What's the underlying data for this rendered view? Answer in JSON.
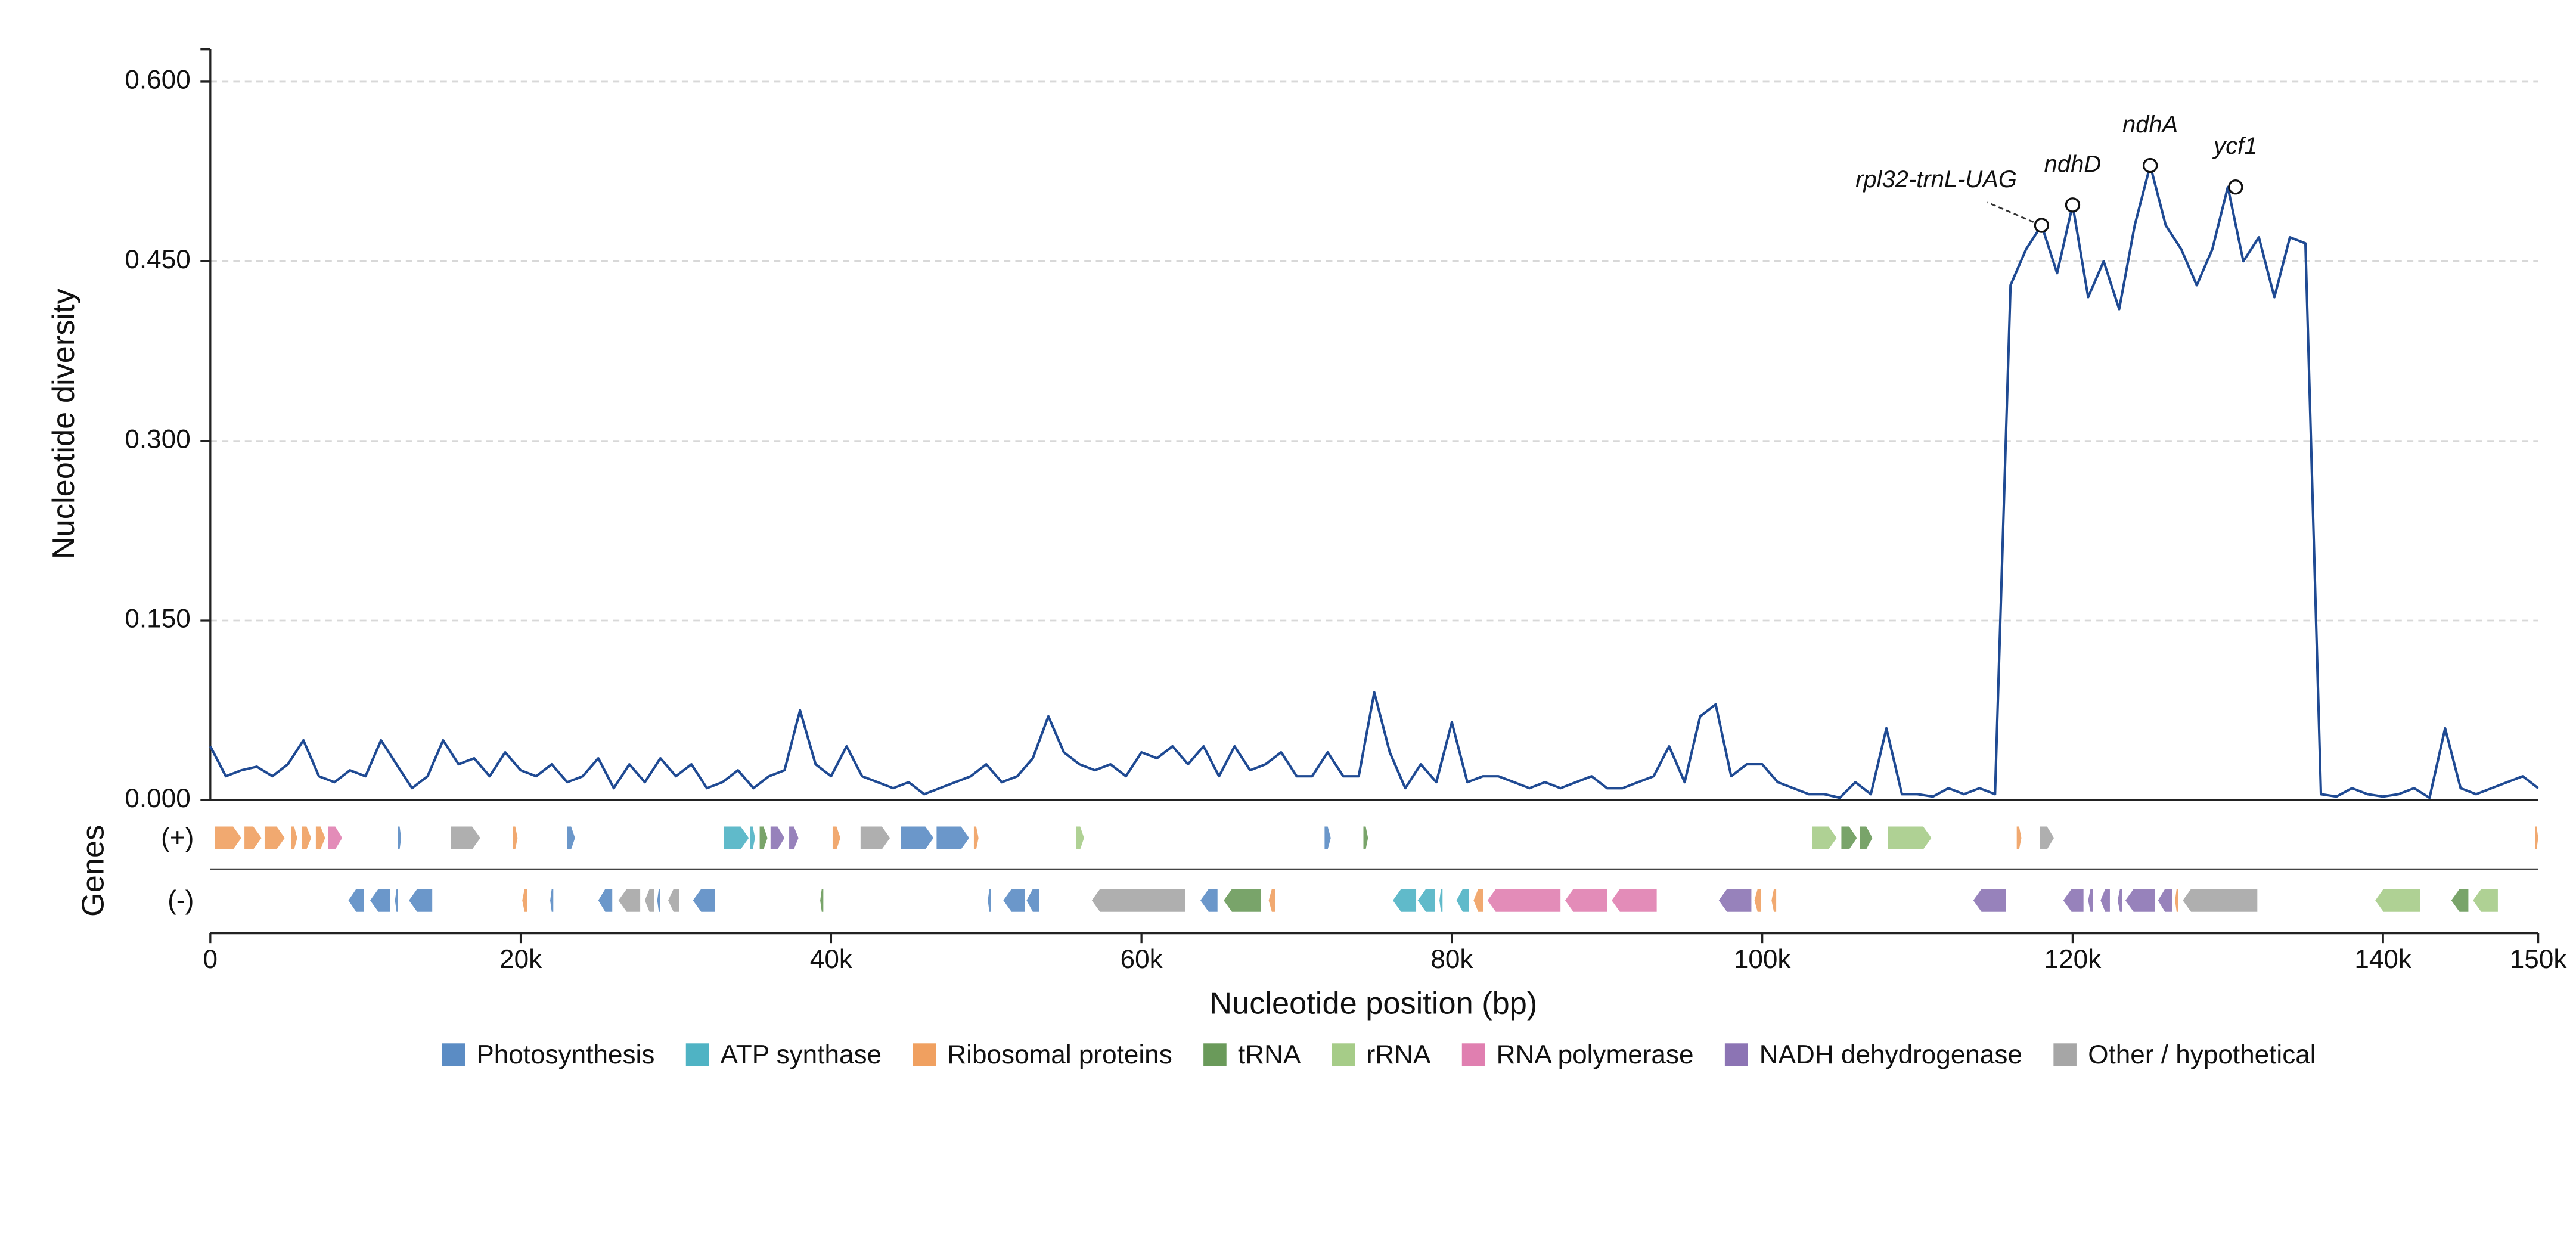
{
  "chart_data": {
    "type": "line",
    "xlabel": "Nucleotide position (bp)",
    "ylabel": "Nucleotide diversity",
    "track_label": "Genes",
    "plus_label": "(+)",
    "minus_label": "(-)",
    "xlim": [
      0,
      150000
    ],
    "ylim": [
      0,
      0.627
    ],
    "xticks": [
      0,
      {
        "value": 20000,
        "label": "20k"
      },
      {
        "value": 40000,
        "label": "40k"
      },
      {
        "value": 60000,
        "label": "60k"
      },
      {
        "value": 80000,
        "label": "80k"
      },
      {
        "value": 100000,
        "label": "100k"
      },
      {
        "value": 120000,
        "label": "120k"
      },
      {
        "value": 140000,
        "label": "140k"
      },
      {
        "value": 150000,
        "label": "150k"
      }
    ],
    "yticks": [
      {
        "value": 0,
        "label": "0.000"
      },
      {
        "value": 0.15,
        "label": "0.150"
      },
      {
        "value": 0.3,
        "label": "0.300"
      },
      {
        "value": 0.45,
        "label": "0.450"
      },
      {
        "value": 0.6,
        "label": "0.600"
      }
    ],
    "grid": true,
    "series": [
      {
        "color": "#1f4a93",
        "x": [
          0,
          1000,
          2000,
          3000,
          4000,
          5000,
          6000,
          7000,
          8000,
          9000,
          10000,
          11000,
          12000,
          13000,
          14000,
          15000,
          16000,
          17000,
          18000,
          19000,
          20000,
          21000,
          22000,
          23000,
          24000,
          25000,
          26000,
          27000,
          28000,
          29000,
          30000,
          31000,
          32000,
          33000,
          34000,
          35000,
          36000,
          37000,
          38000,
          39000,
          40000,
          41000,
          42000,
          43000,
          44000,
          45000,
          46000,
          47000,
          48000,
          49000,
          50000,
          51000,
          52000,
          53000,
          54000,
          55000,
          56000,
          57000,
          58000,
          59000,
          60000,
          61000,
          62000,
          63000,
          64000,
          65000,
          66000,
          67000,
          68000,
          69000,
          70000,
          71000,
          72000,
          73000,
          74000,
          75000,
          76000,
          77000,
          78000,
          79000,
          80000,
          81000,
          82000,
          83000,
          84000,
          85000,
          86000,
          87000,
          88000,
          89000,
          90000,
          91000,
          92000,
          93000,
          94000,
          95000,
          96000,
          97000,
          98000,
          99000,
          100000,
          101000,
          102000,
          103000,
          104000,
          105000,
          106000,
          107000,
          108000,
          109000,
          110000,
          111000,
          112000,
          113000,
          114000,
          115000,
          116000,
          117000,
          118000,
          119000,
          120000,
          121000,
          122000,
          123000,
          124000,
          125000,
          126000,
          127000,
          128000,
          129000,
          130000,
          131000,
          132000,
          133000,
          134000,
          135000,
          136000,
          137000,
          138000,
          139000,
          140000,
          141000,
          142000,
          143000,
          144000,
          145000,
          146000,
          147000,
          148000,
          149000,
          150000
        ],
        "values": [
          0.045,
          0.02,
          0.025,
          0.028,
          0.02,
          0.03,
          0.05,
          0.02,
          0.015,
          0.025,
          0.02,
          0.05,
          0.03,
          0.01,
          0.02,
          0.05,
          0.03,
          0.035,
          0.02,
          0.04,
          0.025,
          0.02,
          0.03,
          0.015,
          0.02,
          0.035,
          0.01,
          0.03,
          0.015,
          0.035,
          0.02,
          0.03,
          0.01,
          0.015,
          0.025,
          0.01,
          0.02,
          0.025,
          0.075,
          0.03,
          0.02,
          0.045,
          0.02,
          0.015,
          0.01,
          0.015,
          0.005,
          0.01,
          0.015,
          0.02,
          0.03,
          0.015,
          0.02,
          0.035,
          0.07,
          0.04,
          0.03,
          0.025,
          0.03,
          0.02,
          0.04,
          0.035,
          0.045,
          0.03,
          0.045,
          0.02,
          0.045,
          0.025,
          0.03,
          0.04,
          0.02,
          0.02,
          0.04,
          0.02,
          0.02,
          0.09,
          0.04,
          0.01,
          0.03,
          0.015,
          0.065,
          0.015,
          0.02,
          0.02,
          0.015,
          0.01,
          0.015,
          0.01,
          0.015,
          0.02,
          0.01,
          0.01,
          0.015,
          0.02,
          0.045,
          0.015,
          0.07,
          0.08,
          0.02,
          0.03,
          0.03,
          0.015,
          0.01,
          0.005,
          0.005,
          0.002,
          0.015,
          0.005,
          0.06,
          0.005,
          0.005,
          0.003,
          0.01,
          0.005,
          0.01,
          0.005,
          0.43,
          0.46,
          0.48,
          0.44,
          0.497,
          0.42,
          0.45,
          0.41,
          0.48,
          0.53,
          0.48,
          0.46,
          0.43,
          0.46,
          0.512,
          0.45,
          0.47,
          0.42,
          0.47,
          0.465,
          0.005,
          0.003,
          0.01,
          0.005,
          0.003,
          0.005,
          0.01,
          0.002,
          0.06,
          0.01,
          0.005,
          0.01,
          0.015,
          0.02,
          0.01
        ]
      }
    ],
    "annotations": [
      {
        "label": "rpl32-trnL-UAG",
        "x": 118000,
        "y": 0.48
      },
      {
        "label": "ndhD",
        "x": 120000,
        "y": 0.497
      },
      {
        "label": "ndhA",
        "x": 125000,
        "y": 0.53
      },
      {
        "label": "ycf1",
        "x": 130500,
        "y": 0.512
      }
    ],
    "legend": [
      {
        "name": "Photosynthesis",
        "color": "#5b8cc4"
      },
      {
        "name": "ATP synthase",
        "color": "#4fb3c4"
      },
      {
        "name": "Ribosomal proteins",
        "color": "#f0a060"
      },
      {
        "name": "tRNA",
        "color": "#6a9a5a"
      },
      {
        "name": "rRNA",
        "color": "#a6cc88"
      },
      {
        "name": "RNA polymerase",
        "color": "#e07fb0"
      },
      {
        "name": "NADH dehydrogenase",
        "color": "#8c74b4"
      },
      {
        "name": "Other / hypothetical",
        "color": "#a6a6a6"
      }
    ],
    "genes": {
      "plus": [
        {
          "start": 300,
          "end": 2000,
          "category": "Ribosomal proteins"
        },
        {
          "start": 2200,
          "end": 3300,
          "category": "Ribosomal proteins"
        },
        {
          "start": 3500,
          "end": 4800,
          "category": "Ribosomal proteins"
        },
        {
          "start": 5200,
          "end": 5600,
          "category": "Ribosomal proteins"
        },
        {
          "start": 5900,
          "end": 6500,
          "category": "Ribosomal proteins"
        },
        {
          "start": 6800,
          "end": 7400,
          "category": "Ribosomal proteins"
        },
        {
          "start": 7600,
          "end": 8500,
          "category": "RNA polymerase"
        },
        {
          "start": 12100,
          "end": 12300,
          "category": "Photosynthesis"
        },
        {
          "start": 15500,
          "end": 17400,
          "category": "Other / hypothetical"
        },
        {
          "start": 19500,
          "end": 19800,
          "category": "Ribosomal proteins"
        },
        {
          "start": 23000,
          "end": 23500,
          "category": "Photosynthesis"
        },
        {
          "start": 33100,
          "end": 34700,
          "category": "ATP synthase"
        },
        {
          "start": 34800,
          "end": 35100,
          "category": "ATP synthase"
        },
        {
          "start": 35400,
          "end": 35900,
          "category": "tRNA"
        },
        {
          "start": 36100,
          "end": 37000,
          "category": "NADH dehydrogenase"
        },
        {
          "start": 37300,
          "end": 37900,
          "category": "NADH dehydrogenase"
        },
        {
          "start": 40100,
          "end": 40600,
          "category": "Ribosomal proteins"
        },
        {
          "start": 41900,
          "end": 43800,
          "category": "Other / hypothetical"
        },
        {
          "start": 44500,
          "end": 46600,
          "category": "Photosynthesis"
        },
        {
          "start": 46800,
          "end": 48900,
          "category": "Photosynthesis"
        },
        {
          "start": 49200,
          "end": 49500,
          "category": "Ribosomal proteins"
        },
        {
          "start": 55800,
          "end": 56300,
          "category": "rRNA"
        },
        {
          "start": 71800,
          "end": 72200,
          "category": "Photosynthesis"
        },
        {
          "start": 74300,
          "end": 74600,
          "category": "tRNA"
        },
        {
          "start": 103200,
          "end": 104800,
          "category": "rRNA"
        },
        {
          "start": 105100,
          "end": 106100,
          "category": "tRNA"
        },
        {
          "start": 106300,
          "end": 107100,
          "category": "tRNA"
        },
        {
          "start": 108100,
          "end": 110900,
          "category": "rRNA"
        },
        {
          "start": 116400,
          "end": 116700,
          "category": "Ribosomal proteins"
        },
        {
          "start": 117900,
          "end": 118800,
          "category": "Other / hypothetical"
        },
        {
          "start": 149800,
          "end": 150000,
          "category": "Ribosomal proteins"
        }
      ],
      "minus": [
        {
          "start": 8900,
          "end": 9900,
          "category": "Photosynthesis"
        },
        {
          "start": 10300,
          "end": 11600,
          "category": "Photosynthesis"
        },
        {
          "start": 11900,
          "end": 12100,
          "category": "Photosynthesis"
        },
        {
          "start": 12800,
          "end": 14300,
          "category": "Photosynthesis"
        },
        {
          "start": 20100,
          "end": 20400,
          "category": "Ribosomal proteins"
        },
        {
          "start": 21900,
          "end": 22100,
          "category": "Photosynthesis"
        },
        {
          "start": 25000,
          "end": 25900,
          "category": "Photosynthesis"
        },
        {
          "start": 26300,
          "end": 27700,
          "category": "Other / hypothetical"
        },
        {
          "start": 28000,
          "end": 28600,
          "category": "Other / hypothetical"
        },
        {
          "start": 28800,
          "end": 29000,
          "category": "Photosynthesis"
        },
        {
          "start": 29500,
          "end": 30200,
          "category": "Other / hypothetical"
        },
        {
          "start": 31100,
          "end": 32500,
          "category": "Photosynthesis"
        },
        {
          "start": 39300,
          "end": 39500,
          "category": "tRNA"
        },
        {
          "start": 50100,
          "end": 50300,
          "category": "Photosynthesis"
        },
        {
          "start": 51100,
          "end": 52500,
          "category": "Photosynthesis"
        },
        {
          "start": 52600,
          "end": 53400,
          "category": "Photosynthesis"
        },
        {
          "start": 56800,
          "end": 62800,
          "category": "Other / hypothetical"
        },
        {
          "start": 63800,
          "end": 64900,
          "category": "Photosynthesis"
        },
        {
          "start": 65300,
          "end": 67700,
          "category": "tRNA"
        },
        {
          "start": 68200,
          "end": 68600,
          "category": "Ribosomal proteins"
        },
        {
          "start": 76200,
          "end": 77700,
          "category": "ATP synthase"
        },
        {
          "start": 77800,
          "end": 78900,
          "category": "ATP synthase"
        },
        {
          "start": 79200,
          "end": 79400,
          "category": "ATP synthase"
        },
        {
          "start": 80300,
          "end": 81100,
          "category": "ATP synthase"
        },
        {
          "start": 81400,
          "end": 82000,
          "category": "Ribosomal proteins"
        },
        {
          "start": 82300,
          "end": 87000,
          "category": "RNA polymerase"
        },
        {
          "start": 87300,
          "end": 90000,
          "category": "RNA polymerase"
        },
        {
          "start": 90300,
          "end": 93200,
          "category": "RNA polymerase"
        },
        {
          "start": 97200,
          "end": 99300,
          "category": "NADH dehydrogenase"
        },
        {
          "start": 99500,
          "end": 99900,
          "category": "Ribosomal proteins"
        },
        {
          "start": 100600,
          "end": 100900,
          "category": "Ribosomal proteins"
        },
        {
          "start": 113600,
          "end": 115700,
          "category": "NADH dehydrogenase"
        },
        {
          "start": 119400,
          "end": 120700,
          "category": "NADH dehydrogenase"
        },
        {
          "start": 121000,
          "end": 121300,
          "category": "NADH dehydrogenase"
        },
        {
          "start": 121800,
          "end": 122400,
          "category": "NADH dehydrogenase"
        },
        {
          "start": 122900,
          "end": 123200,
          "category": "NADH dehydrogenase"
        },
        {
          "start": 123400,
          "end": 125300,
          "category": "NADH dehydrogenase"
        },
        {
          "start": 125500,
          "end": 126400,
          "category": "NADH dehydrogenase"
        },
        {
          "start": 126600,
          "end": 126800,
          "category": "Ribosomal proteins"
        },
        {
          "start": 127100,
          "end": 131900,
          "category": "Other / hypothetical"
        },
        {
          "start": 139500,
          "end": 142400,
          "category": "rRNA"
        },
        {
          "start": 144400,
          "end": 145500,
          "category": "tRNA"
        },
        {
          "start": 145800,
          "end": 147400,
          "category": "rRNA"
        }
      ]
    }
  }
}
